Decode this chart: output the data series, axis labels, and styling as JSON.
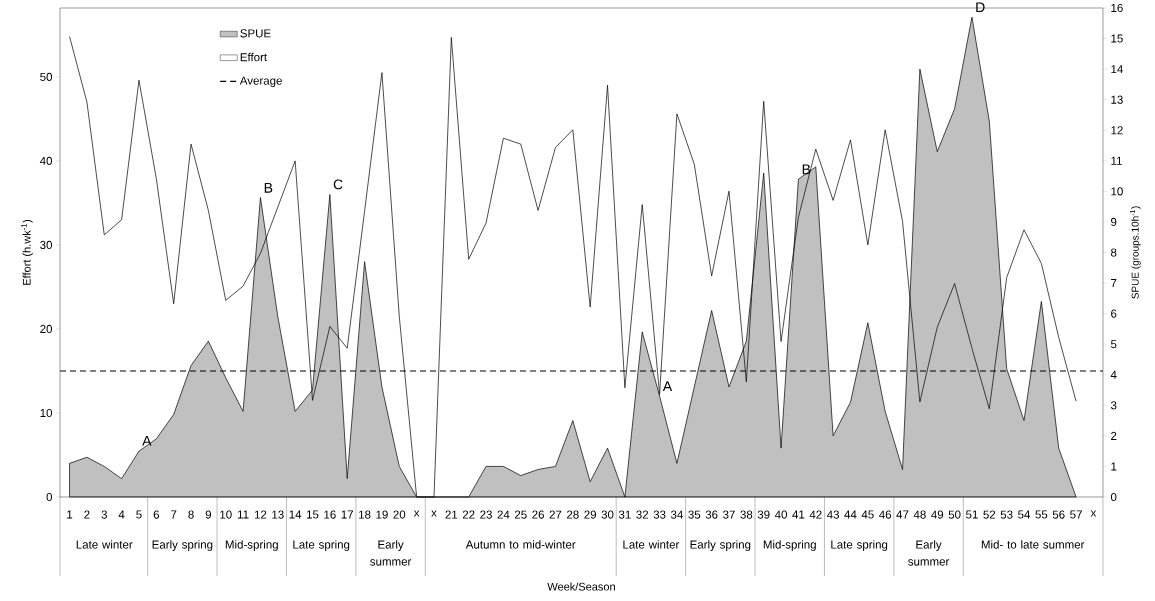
{
  "chart_data": {
    "type": "area",
    "ylabel": "Effort (h.wk$^{-1}$)",
    "y2label": "SPUE (groups.10h$^{-1}$)",
    "categories": [
      "1",
      "2",
      "3",
      "4",
      "5",
      "6",
      "7",
      "8",
      "9",
      "10",
      "11",
      "12",
      "13",
      "14",
      "15",
      "16",
      "17",
      "18",
      "19",
      "20",
      "x",
      "x",
      "21",
      "22",
      "23",
      "24",
      "25",
      "26",
      "27",
      "28",
      "29",
      "30",
      "31",
      "32",
      "33",
      "34",
      "35",
      "36",
      "37",
      "38",
      "39",
      "40",
      "41",
      "42",
      "43",
      "44",
      "45",
      "46",
      "47",
      "48",
      "49",
      "50",
      "51",
      "52",
      "53",
      "54",
      "55",
      "56",
      "57",
      "x"
    ],
    "series": [
      {
        "name": "SPUE",
        "axis": "y2",
        "color": "#c0c0c0",
        "values": [
          1.1,
          1.3,
          1.0,
          0.6,
          1.5,
          1.9,
          2.7,
          4.3,
          5.1,
          3.9,
          2.8,
          9.8,
          5.9,
          2.8,
          3.5,
          9.9,
          0.6,
          7.7,
          3.6,
          1.0,
          0,
          0,
          0,
          0,
          1.0,
          1.0,
          0.7,
          0.9,
          1.0,
          2.5,
          0.5,
          1.6,
          0,
          5.4,
          3.3,
          1.1,
          3.6,
          6.1,
          3.6,
          5.1,
          10.6,
          1.6,
          10.4,
          10.8,
          2.0,
          3.1,
          5.7,
          2.8,
          0.9,
          14.0,
          11.3,
          12.7,
          15.7,
          12.3,
          4.2,
          2.5,
          6.4,
          1.6,
          0,
          null
        ]
      },
      {
        "name": "Effort",
        "type": "line",
        "color": "#000000",
        "values": [
          54.8,
          47.0,
          31.2,
          33.0,
          49.6,
          37.9,
          23.0,
          42.0,
          34.1,
          23.4,
          25.1,
          29.0,
          34.5,
          40.0,
          11.5,
          20.3,
          17.7,
          34.0,
          50.5,
          21.5,
          0,
          0,
          54.7,
          28.3,
          32.6,
          42.7,
          42.0,
          34.1,
          41.6,
          43.7,
          22.6,
          49.0,
          13.0,
          34.8,
          12.2,
          45.6,
          39.6,
          26.3,
          36.4,
          13.7,
          47.1,
          18.5,
          33.3,
          41.4,
          35.3,
          42.5,
          30.0,
          43.7,
          32.8,
          11.3,
          20.2,
          25.4,
          17.7,
          10.5,
          26.1,
          31.8,
          27.8,
          19.0,
          11.4,
          null
        ]
      }
    ],
    "ylim": [
      0,
      58.2
    ],
    "yticks": [
      0,
      10,
      20,
      30,
      40,
      50
    ],
    "y2lim": [
      0,
      16
    ],
    "y2ticks": [
      0,
      1,
      2,
      3,
      4,
      5,
      6,
      7,
      8,
      9,
      10,
      11,
      12,
      13,
      14,
      15,
      16
    ],
    "ref_lines": [
      {
        "axis": "y",
        "value": 15,
        "label": "Average",
        "color": "#000000",
        "line_style": "dashed"
      }
    ],
    "legend": "top left",
    "annotations": [
      {
        "text": "A",
        "x": "5",
        "y": 5.5
      },
      {
        "text": "B",
        "x": "12",
        "y": 35.6
      },
      {
        "text": "C",
        "x": "16",
        "y": 36.0
      },
      {
        "text": "A",
        "x": "33",
        "y": 12.0
      },
      {
        "text": "B",
        "x": "41",
        "y": 37.8
      },
      {
        "text": "D",
        "x": "51",
        "y": 57.1
      },
      "Late winter",
      "Early spring",
      "Mid-spring",
      "Late spring",
      "Early summer",
      "Autumn to mid-winter",
      "Late winter",
      "Early spring",
      "Mid-spring",
      "Late spring",
      "Early summer",
      "Mid- to late summer",
      "Week/Season"
    ]
  }
}
